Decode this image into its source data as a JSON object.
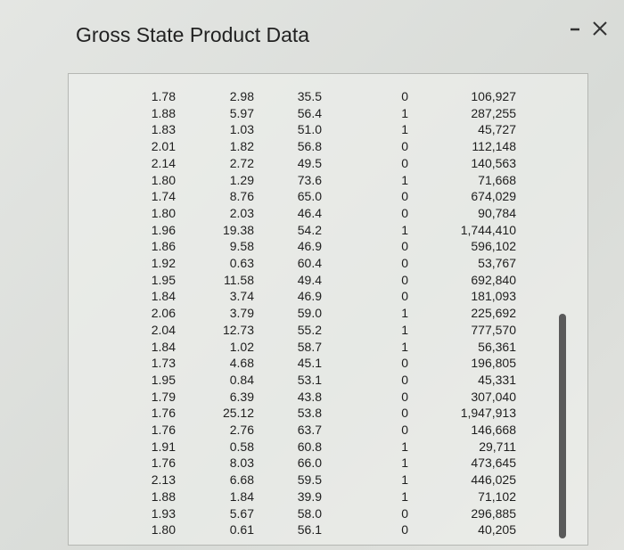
{
  "header": {
    "title": "Gross State Product Data"
  },
  "table": {
    "rows": [
      [
        "1.78",
        "2.98",
        "35.5",
        "0",
        "106,927"
      ],
      [
        "1.88",
        "5.97",
        "56.4",
        "1",
        "287,255"
      ],
      [
        "1.83",
        "1.03",
        "51.0",
        "1",
        "45,727"
      ],
      [
        "2.01",
        "1.82",
        "56.8",
        "0",
        "112,148"
      ],
      [
        "2.14",
        "2.72",
        "49.5",
        "0",
        "140,563"
      ],
      [
        "1.80",
        "1.29",
        "73.6",
        "1",
        "71,668"
      ],
      [
        "1.74",
        "8.76",
        "65.0",
        "0",
        "674,029"
      ],
      [
        "1.80",
        "2.03",
        "46.4",
        "0",
        "90,784"
      ],
      [
        "1.96",
        "19.38",
        "54.2",
        "1",
        "1,744,410"
      ],
      [
        "1.86",
        "9.58",
        "46.9",
        "0",
        "596,102"
      ],
      [
        "1.92",
        "0.63",
        "60.4",
        "0",
        "53,767"
      ],
      [
        "1.95",
        "11.58",
        "49.4",
        "0",
        "692,840"
      ],
      [
        "1.84",
        "3.74",
        "46.9",
        "0",
        "181,093"
      ],
      [
        "2.06",
        "3.79",
        "59.0",
        "1",
        "225,692"
      ],
      [
        "2.04",
        "12.73",
        "55.2",
        "1",
        "777,570"
      ],
      [
        "1.84",
        "1.02",
        "58.7",
        "1",
        "56,361"
      ],
      [
        "1.73",
        "4.68",
        "45.1",
        "0",
        "196,805"
      ],
      [
        "1.95",
        "0.84",
        "53.1",
        "0",
        "45,331"
      ],
      [
        "1.79",
        "6.39",
        "43.8",
        "0",
        "307,040"
      ],
      [
        "1.76",
        "25.12",
        "53.8",
        "0",
        "1,947,913"
      ],
      [
        "1.76",
        "2.76",
        "63.7",
        "0",
        "146,668"
      ],
      [
        "1.91",
        "0.58",
        "60.8",
        "1",
        "29,711"
      ],
      [
        "1.76",
        "8.03",
        "66.0",
        "1",
        "473,645"
      ],
      [
        "2.13",
        "6.68",
        "59.5",
        "1",
        "446,025"
      ],
      [
        "1.88",
        "1.84",
        "39.9",
        "1",
        "71,102"
      ],
      [
        "1.93",
        "5.67",
        "58.0",
        "0",
        "296,885"
      ],
      [
        "1.80",
        "0.61",
        "56.1",
        "0",
        "40,205"
      ]
    ]
  }
}
